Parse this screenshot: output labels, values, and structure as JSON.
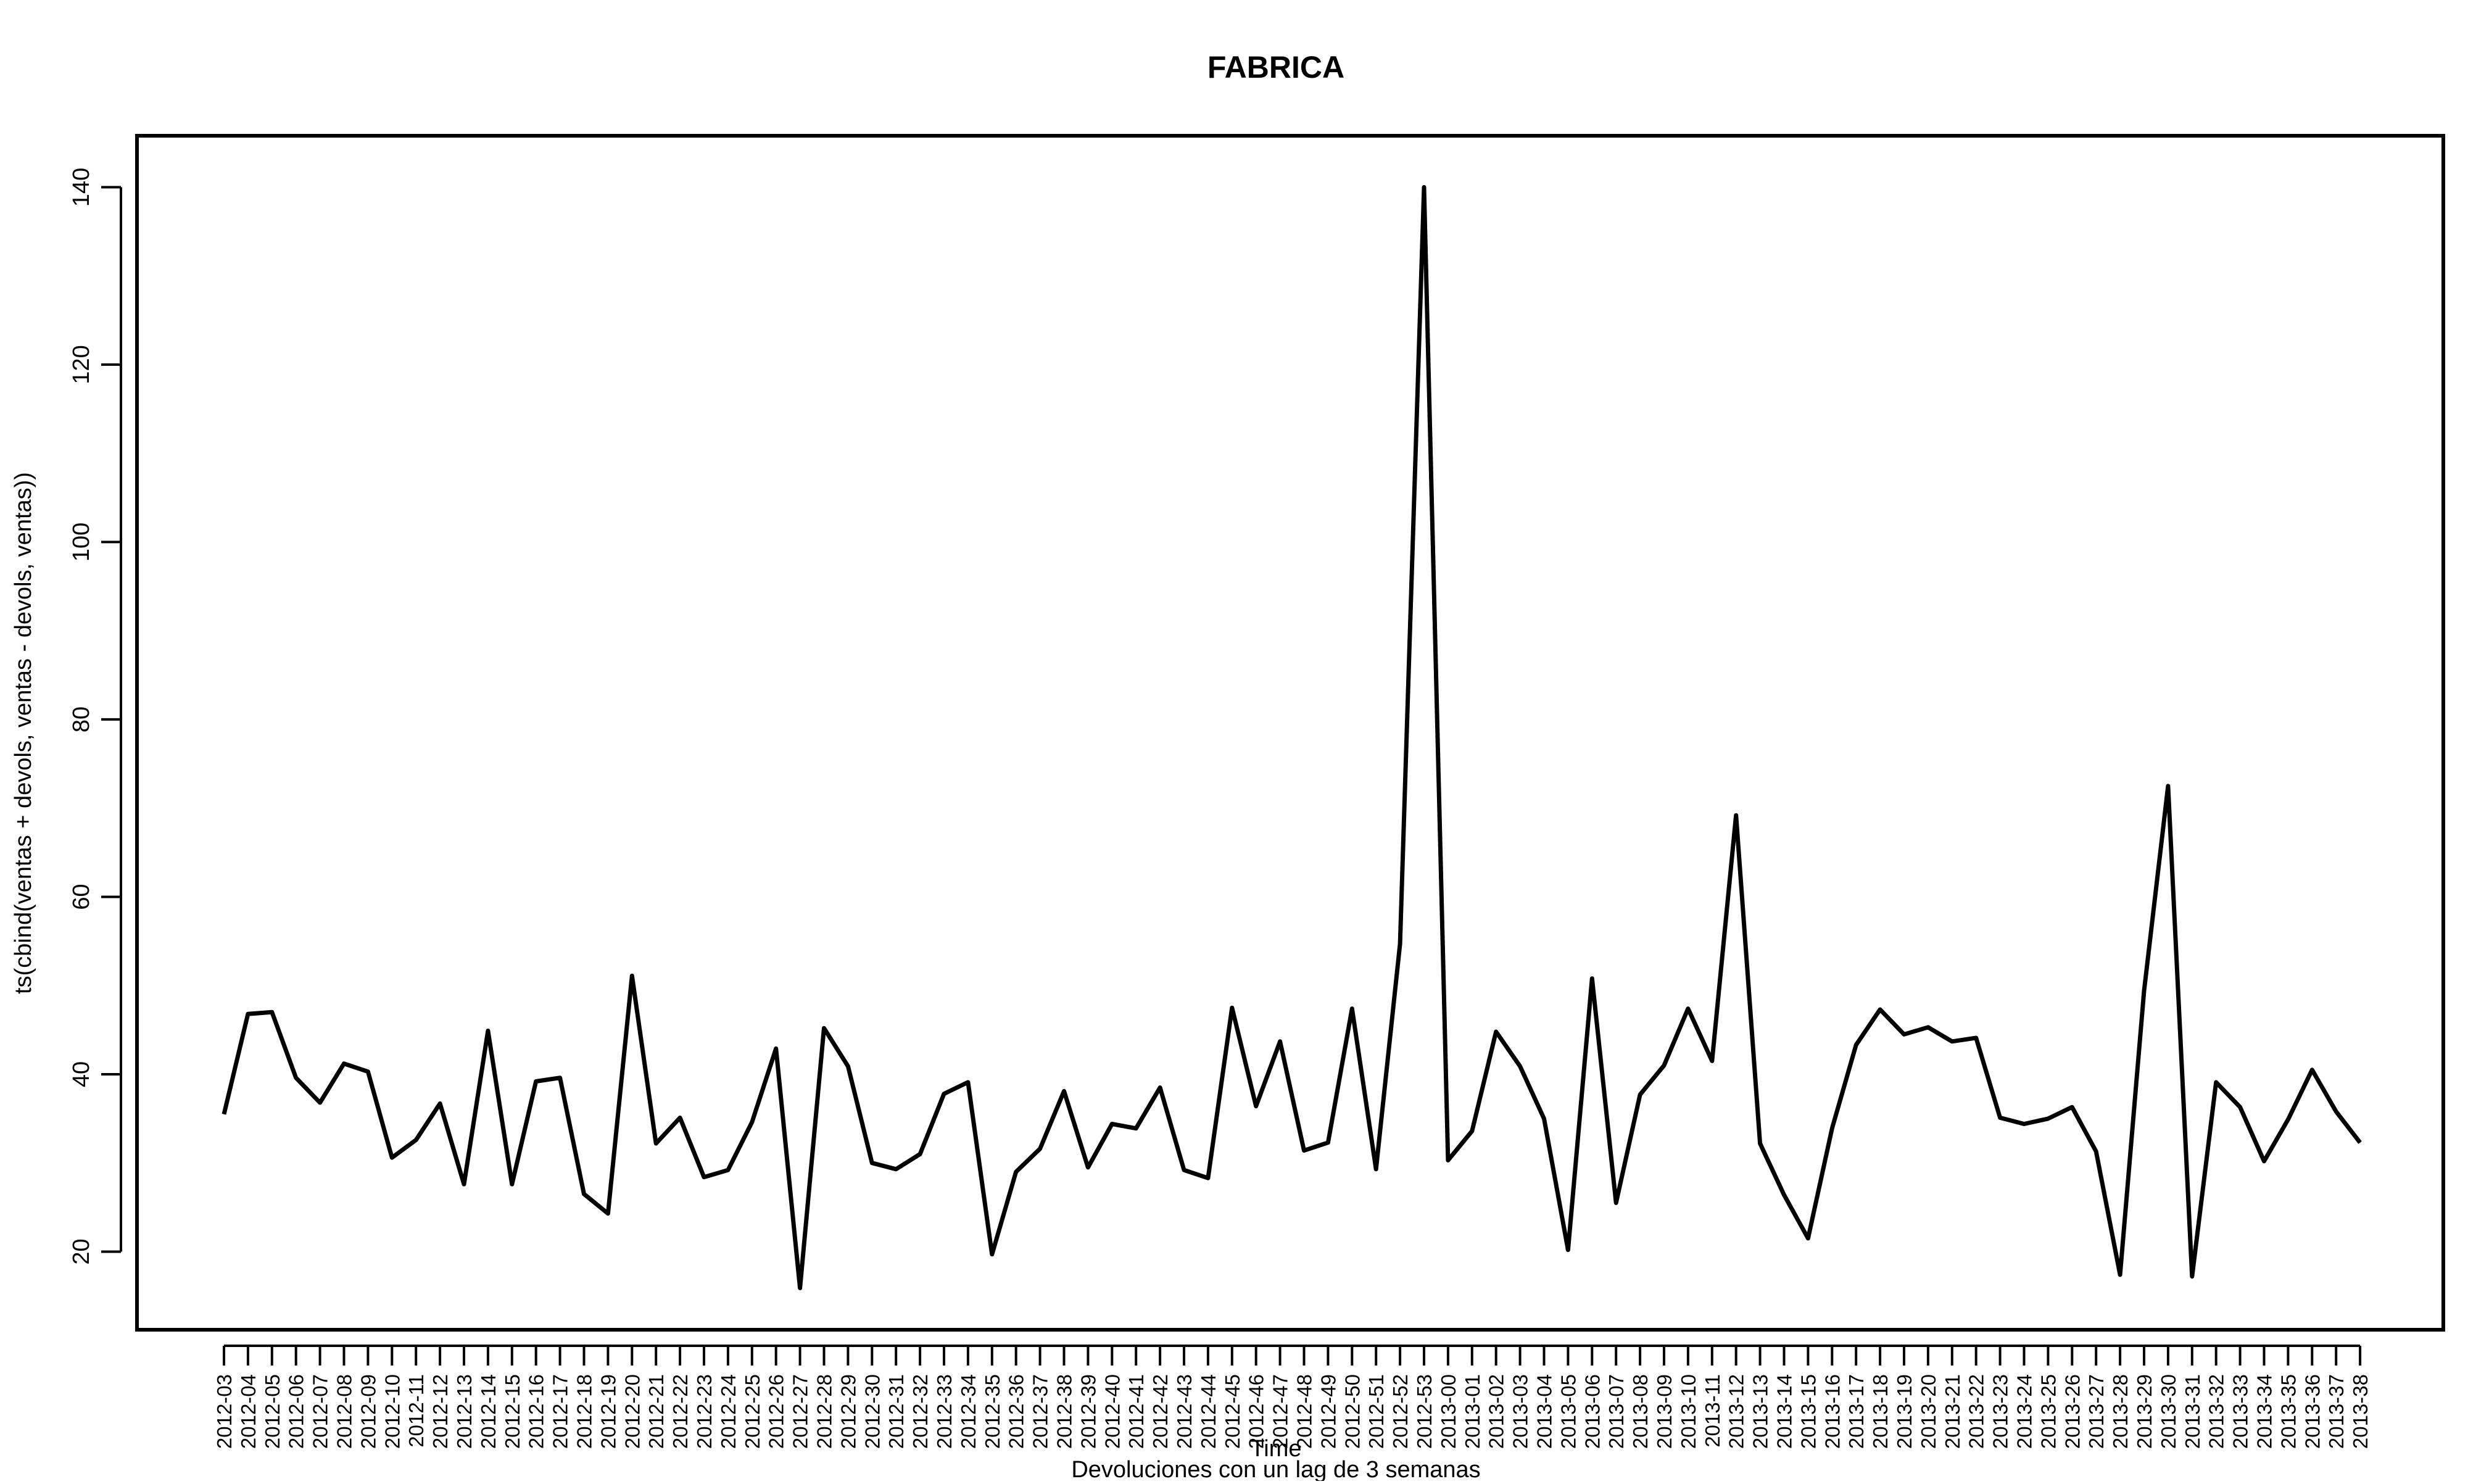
{
  "chart_data": {
    "type": "line",
    "title": "FABRICA",
    "xlabel": "Time",
    "ylabel": "ts(cbind(ventas + devols, ventas - devols, ventas))",
    "subtitle": "Devoluciones con un lag de 3 semanas",
    "ylim": [
      11.2,
      145.8
    ],
    "y_ticks": [
      20,
      40,
      60,
      80,
      100,
      120,
      140
    ],
    "grid": false,
    "x": [
      "2012-03",
      "2012-04",
      "2012-05",
      "2012-06",
      "2012-07",
      "2012-08",
      "2012-09",
      "2012-10",
      "2012-11",
      "2012-12",
      "2012-13",
      "2012-14",
      "2012-15",
      "2012-16",
      "2012-17",
      "2012-18",
      "2012-19",
      "2012-20",
      "2012-21",
      "2012-22",
      "2012-23",
      "2012-24",
      "2012-25",
      "2012-26",
      "2012-27",
      "2012-28",
      "2012-29",
      "2012-30",
      "2012-31",
      "2012-32",
      "2012-33",
      "2012-34",
      "2012-35",
      "2012-36",
      "2012-37",
      "2012-38",
      "2012-39",
      "2012-40",
      "2012-41",
      "2012-42",
      "2012-43",
      "2012-44",
      "2012-45",
      "2012-46",
      "2012-47",
      "2012-48",
      "2012-49",
      "2012-50",
      "2012-51",
      "2012-52",
      "2012-53",
      "2013-00",
      "2013-01",
      "2013-02",
      "2013-03",
      "2013-04",
      "2013-05",
      "2013-06",
      "2013-07",
      "2013-08",
      "2013-09",
      "2013-10",
      "2013-11",
      "2013-12",
      "2013-13",
      "2013-14",
      "2013-15",
      "2013-16",
      "2013-17",
      "2013-18",
      "2013-19",
      "2013-20",
      "2013-21",
      "2013-22",
      "2013-23",
      "2013-24",
      "2013-25",
      "2013-26",
      "2013-27",
      "2013-28",
      "2013-29",
      "2013-30",
      "2013-31",
      "2013-32",
      "2013-33",
      "2013-34",
      "2013-35",
      "2013-36",
      "2013-37",
      "2013-38"
    ],
    "series": [
      {
        "color": "#000000",
        "values": [
          35.5,
          46.8,
          47.0,
          39.6,
          36.8,
          41.2,
          40.3,
          30.6,
          32.6,
          36.7,
          27.6,
          44.9,
          27.6,
          39.2,
          39.6,
          26.5,
          24.3,
          51.1,
          32.2,
          35.1,
          28.4,
          29.2,
          34.6,
          42.9,
          15.9,
          45.2,
          40.9,
          30.0,
          29.3,
          31.0,
          37.8,
          39.1,
          19.7,
          29.0,
          31.6,
          38.1,
          29.5,
          34.4,
          33.9,
          38.5,
          29.2,
          28.3,
          47.5,
          36.4,
          43.7,
          31.4,
          32.3,
          47.4,
          29.3,
          54.7,
          140.0,
          30.3,
          33.6,
          44.8,
          40.9,
          35.0,
          20.2,
          50.8,
          25.5,
          37.7,
          41.0,
          47.4,
          41.5,
          69.2,
          32.2,
          26.4,
          21.5,
          33.9,
          43.3,
          47.3,
          44.5,
          45.3,
          43.7,
          44.1,
          35.1,
          34.4,
          35.0,
          36.3,
          31.3,
          17.4,
          49.4,
          72.5,
          17.2,
          39.1,
          36.3,
          30.2,
          34.9,
          40.5,
          35.8,
          32.3
        ]
      }
    ]
  }
}
